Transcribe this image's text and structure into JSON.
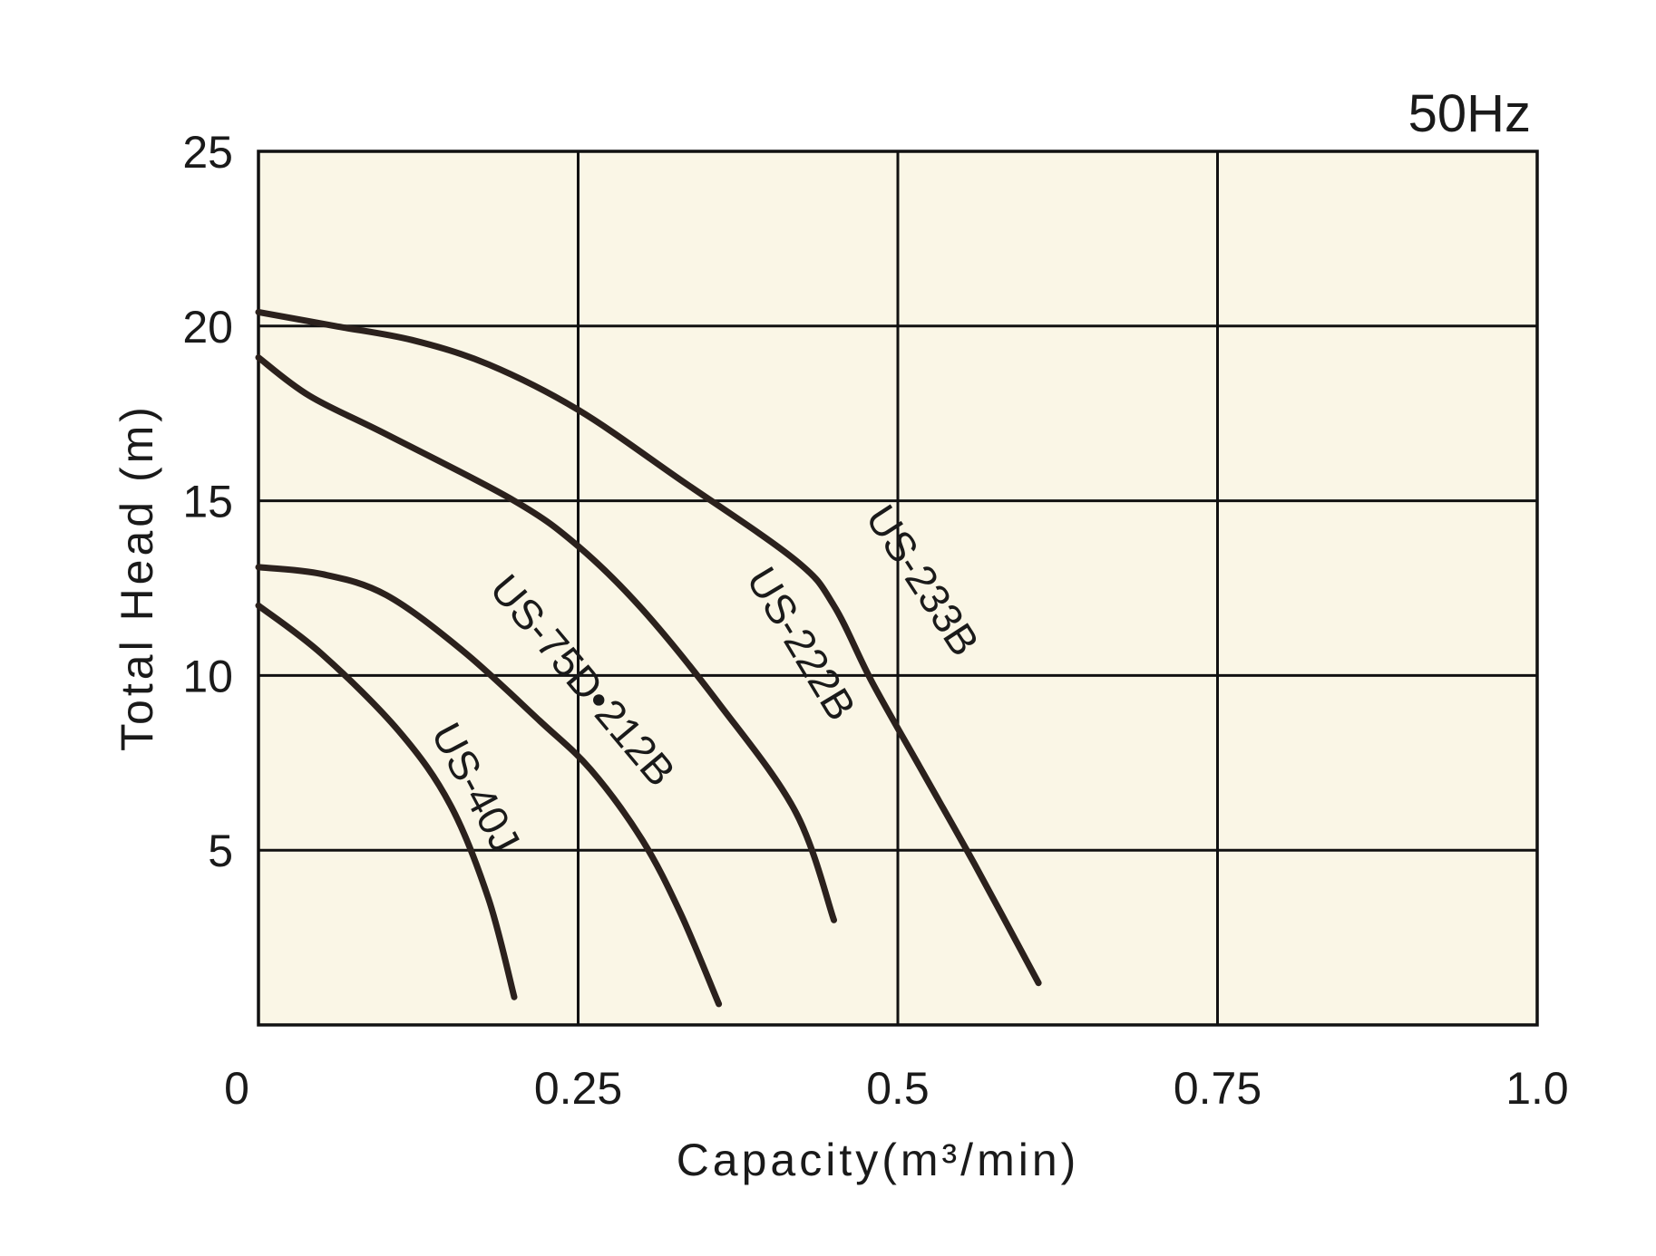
{
  "chart_data": {
    "type": "line",
    "frequency_label": "50Hz",
    "xlabel": "Capacity(m³/min)",
    "ylabel": "Total Head (m)",
    "xlim": [
      0,
      1.0
    ],
    "ylim": [
      0,
      25
    ],
    "x_ticks": [
      {
        "value": 0,
        "label": "0"
      },
      {
        "value": 0.25,
        "label": "0.25"
      },
      {
        "value": 0.5,
        "label": "0.5"
      },
      {
        "value": 0.75,
        "label": "0.75"
      },
      {
        "value": 1.0,
        "label": "1.0"
      }
    ],
    "y_ticks": [
      {
        "value": 5,
        "label": "5"
      },
      {
        "value": 10,
        "label": "10"
      },
      {
        "value": 15,
        "label": "15"
      },
      {
        "value": 20,
        "label": "20"
      },
      {
        "value": 25,
        "label": "25"
      }
    ],
    "grid": true,
    "plot_background": "#faf6e6",
    "line_color": "#2b211d",
    "series": [
      {
        "name": "US-233B",
        "label_at": {
          "x": 0.51,
          "y": 12.5,
          "angle": 57
        },
        "points": [
          [
            0,
            20.4
          ],
          [
            0.06,
            20.0
          ],
          [
            0.12,
            19.6
          ],
          [
            0.18,
            18.9
          ],
          [
            0.25,
            17.6
          ],
          [
            0.33,
            15.6
          ],
          [
            0.42,
            13.3
          ],
          [
            0.45,
            12.0
          ],
          [
            0.48,
            9.8
          ],
          [
            0.52,
            7.2
          ],
          [
            0.56,
            4.6
          ],
          [
            0.61,
            1.2
          ]
        ]
      },
      {
        "name": "US-222B",
        "label_at": {
          "x": 0.415,
          "y": 10.7,
          "angle": 59
        },
        "points": [
          [
            0,
            19.1
          ],
          [
            0.04,
            18.0
          ],
          [
            0.1,
            16.9
          ],
          [
            0.2,
            15.0
          ],
          [
            0.25,
            13.7
          ],
          [
            0.3,
            11.9
          ],
          [
            0.36,
            9.2
          ],
          [
            0.42,
            6.1
          ],
          [
            0.45,
            3.0
          ]
        ]
      },
      {
        "name": "US-75D•212B",
        "label_at": {
          "x": 0.245,
          "y": 9.6,
          "angle": 50
        },
        "points": [
          [
            0,
            13.1
          ],
          [
            0.05,
            12.9
          ],
          [
            0.1,
            12.3
          ],
          [
            0.16,
            10.7
          ],
          [
            0.22,
            8.7
          ],
          [
            0.26,
            7.3
          ],
          [
            0.3,
            5.3
          ],
          [
            0.33,
            3.2
          ],
          [
            0.36,
            0.6
          ]
        ]
      },
      {
        "name": "US-40J",
        "label_at": {
          "x": 0.16,
          "y": 6.6,
          "angle": 62
        },
        "points": [
          [
            0,
            12.0
          ],
          [
            0.05,
            10.6
          ],
          [
            0.11,
            8.4
          ],
          [
            0.15,
            6.3
          ],
          [
            0.18,
            3.6
          ],
          [
            0.2,
            0.8
          ]
        ]
      }
    ]
  }
}
